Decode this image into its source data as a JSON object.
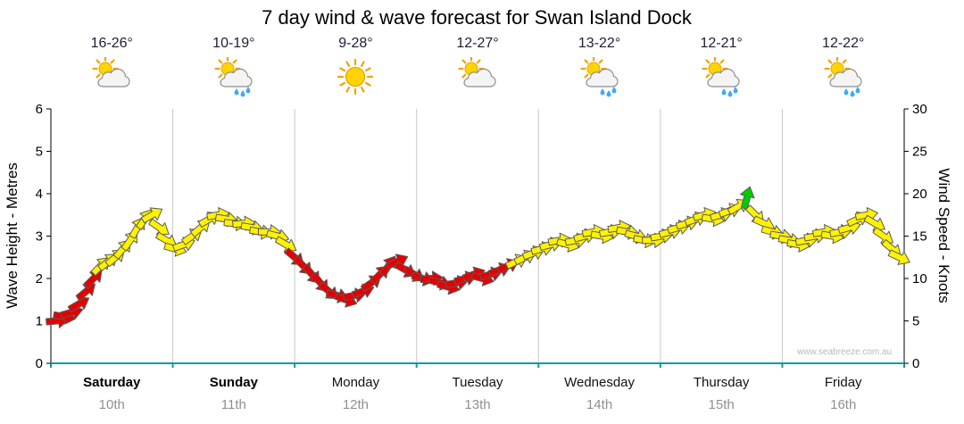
{
  "title": "7 day wind & wave forecast for Swan Island Dock",
  "watermark": "www.seabreeze.com.au",
  "colors": {
    "arrow_red": "#e60000",
    "arrow_yellow": "#fff200",
    "arrow_green": "#00cc00",
    "arrow_outline": "#5a5a5a",
    "axis": "#000000",
    "axis_bottom": "#0f9b9b",
    "grid": "#c8c8c8",
    "date_text": "#909090",
    "temp_text": "#1e1e32",
    "watermark_text": "#b8b8b8"
  },
  "y_axis_left": {
    "label": "Wave Height - Metres",
    "ticks": [
      0,
      1,
      2,
      3,
      4,
      5,
      6
    ],
    "range": [
      0,
      6
    ]
  },
  "y_axis_right": {
    "label": "Wind Speed - Knots",
    "ticks": [
      0,
      5,
      10,
      15,
      20,
      25,
      30
    ],
    "range": [
      0,
      30
    ]
  },
  "days": [
    {
      "name": "Saturday",
      "date": "10th",
      "temp": "16-26°",
      "icon": "sun-cloud",
      "weekend": true
    },
    {
      "name": "Sunday",
      "date": "11th",
      "temp": "10-19°",
      "icon": "sun-cloud-rain",
      "weekend": true
    },
    {
      "name": "Monday",
      "date": "12th",
      "temp": "9-28°",
      "icon": "sun",
      "weekend": false
    },
    {
      "name": "Tuesday",
      "date": "13th",
      "temp": "12-27°",
      "icon": "sun-cloud",
      "weekend": false
    },
    {
      "name": "Wednesday",
      "date": "14th",
      "temp": "13-22°",
      "icon": "sun-cloud-rain",
      "weekend": false
    },
    {
      "name": "Thursday",
      "date": "15th",
      "temp": "12-21°",
      "icon": "sun-cloud-rain",
      "weekend": false
    },
    {
      "name": "Friday",
      "date": "16th",
      "temp": "12-22°",
      "icon": "sun-cloud-rain",
      "weekend": false
    }
  ],
  "chart_data": {
    "type": "wind-arrows",
    "title": "7 day wind & wave forecast for Swan Island Dock",
    "x_axis": {
      "unit": "days",
      "range": [
        0,
        7
      ],
      "categories": [
        "Saturday 10th",
        "Sunday 11th",
        "Monday 12th",
        "Tuesday 13th",
        "Wednesday 14th",
        "Thursday 15th",
        "Friday 16th"
      ]
    },
    "y_axis": {
      "label": "Wind Speed - Knots",
      "range": [
        0,
        30
      ],
      "grid": "vertical-day-lines-only"
    },
    "secondary_y_axis": {
      "label": "Wave Height - Metres",
      "range": [
        0,
        6
      ]
    },
    "point_format": [
      "day_offset",
      "wind_speed_knots",
      "arrow_angle_deg_ccw_from_east",
      "color r|y|g"
    ],
    "points": [
      [
        0.05,
        5,
        5,
        "r"
      ],
      [
        0.11,
        5.5,
        -10,
        "r"
      ],
      [
        0.17,
        6,
        15,
        "r"
      ],
      [
        0.23,
        7,
        30,
        "r"
      ],
      [
        0.29,
        8.5,
        40,
        "r"
      ],
      [
        0.35,
        10,
        45,
        "r"
      ],
      [
        0.41,
        11.5,
        45,
        "y"
      ],
      [
        0.47,
        12,
        40,
        "y"
      ],
      [
        0.53,
        12.5,
        40,
        "y"
      ],
      [
        0.59,
        13.5,
        50,
        "y"
      ],
      [
        0.65,
        14.5,
        55,
        "y"
      ],
      [
        0.71,
        16,
        60,
        "y"
      ],
      [
        0.77,
        17,
        55,
        "y"
      ],
      [
        0.83,
        17.5,
        30,
        "y"
      ],
      [
        0.89,
        16,
        -35,
        "y"
      ],
      [
        0.95,
        14.5,
        -30,
        "y"
      ],
      [
        1.02,
        13.5,
        -15,
        "y"
      ],
      [
        1.09,
        14,
        20,
        "y"
      ],
      [
        1.16,
        15,
        35,
        "y"
      ],
      [
        1.23,
        16,
        40,
        "y"
      ],
      [
        1.3,
        17,
        30,
        "y"
      ],
      [
        1.37,
        17.5,
        10,
        "y"
      ],
      [
        1.44,
        17,
        -10,
        "y"
      ],
      [
        1.51,
        16.5,
        -5,
        "y"
      ],
      [
        1.58,
        16.5,
        5,
        "y"
      ],
      [
        1.65,
        16,
        -10,
        "y"
      ],
      [
        1.72,
        15.5,
        -10,
        "y"
      ],
      [
        1.79,
        15.5,
        0,
        "y"
      ],
      [
        1.86,
        15,
        -15,
        "y"
      ],
      [
        1.93,
        14,
        -30,
        "y"
      ],
      [
        2.0,
        12.5,
        -40,
        "r"
      ],
      [
        2.07,
        11.5,
        -45,
        "r"
      ],
      [
        2.14,
        10.5,
        -50,
        "r"
      ],
      [
        2.21,
        9.5,
        -50,
        "r"
      ],
      [
        2.28,
        8.5,
        -40,
        "r"
      ],
      [
        2.35,
        8,
        -15,
        "r"
      ],
      [
        2.42,
        7.5,
        -20,
        "r"
      ],
      [
        2.49,
        8,
        10,
        "r"
      ],
      [
        2.56,
        8.5,
        20,
        "r"
      ],
      [
        2.63,
        9.5,
        35,
        "r"
      ],
      [
        2.7,
        10.5,
        45,
        "r"
      ],
      [
        2.77,
        11.5,
        55,
        "r"
      ],
      [
        2.84,
        12,
        25,
        "r"
      ],
      [
        2.91,
        11,
        -30,
        "r"
      ],
      [
        2.98,
        10.5,
        -30,
        "r"
      ],
      [
        3.05,
        10,
        -15,
        "r"
      ],
      [
        3.12,
        10,
        5,
        "r"
      ],
      [
        3.19,
        9.5,
        -15,
        "r"
      ],
      [
        3.26,
        9,
        -15,
        "r"
      ],
      [
        3.33,
        9.5,
        10,
        "r"
      ],
      [
        3.4,
        10,
        15,
        "r"
      ],
      [
        3.47,
        10.5,
        20,
        "r"
      ],
      [
        3.54,
        10,
        -15,
        "r"
      ],
      [
        3.61,
        10.5,
        15,
        "r"
      ],
      [
        3.68,
        11,
        20,
        "r"
      ],
      [
        3.75,
        11.5,
        25,
        "r"
      ],
      [
        3.82,
        12,
        25,
        "y"
      ],
      [
        3.89,
        12.5,
        25,
        "y"
      ],
      [
        3.96,
        13,
        20,
        "y"
      ],
      [
        4.03,
        13.5,
        15,
        "y"
      ],
      [
        4.1,
        14,
        15,
        "y"
      ],
      [
        4.17,
        14.5,
        10,
        "y"
      ],
      [
        4.24,
        14,
        -15,
        "y"
      ],
      [
        4.31,
        14.5,
        10,
        "y"
      ],
      [
        4.38,
        15,
        15,
        "y"
      ],
      [
        4.45,
        15.5,
        10,
        "y"
      ],
      [
        4.52,
        15,
        -10,
        "y"
      ],
      [
        4.59,
        15.5,
        10,
        "y"
      ],
      [
        4.66,
        16,
        10,
        "y"
      ],
      [
        4.73,
        15.5,
        -10,
        "y"
      ],
      [
        4.8,
        15,
        -15,
        "y"
      ],
      [
        4.87,
        14.5,
        -10,
        "y"
      ],
      [
        4.94,
        14.5,
        0,
        "y"
      ],
      [
        5.01,
        15,
        10,
        "y"
      ],
      [
        5.08,
        15.5,
        15,
        "y"
      ],
      [
        5.15,
        16,
        15,
        "y"
      ],
      [
        5.22,
        16.5,
        15,
        "y"
      ],
      [
        5.29,
        17,
        20,
        "y"
      ],
      [
        5.36,
        17.5,
        15,
        "y"
      ],
      [
        5.43,
        17,
        -10,
        "y"
      ],
      [
        5.5,
        17.5,
        15,
        "y"
      ],
      [
        5.57,
        18,
        20,
        "y"
      ],
      [
        5.64,
        18.5,
        30,
        "y"
      ],
      [
        5.71,
        19.5,
        75,
        "g"
      ],
      [
        5.78,
        17.5,
        -45,
        "y"
      ],
      [
        5.85,
        16.5,
        -25,
        "y"
      ],
      [
        5.92,
        15.5,
        -15,
        "y"
      ],
      [
        5.99,
        15,
        -10,
        "y"
      ],
      [
        6.06,
        14.5,
        -10,
        "y"
      ],
      [
        6.13,
        14,
        -10,
        "y"
      ],
      [
        6.2,
        14.5,
        10,
        "y"
      ],
      [
        6.27,
        15,
        10,
        "y"
      ],
      [
        6.34,
        15.5,
        10,
        "y"
      ],
      [
        6.41,
        15,
        -10,
        "y"
      ],
      [
        6.48,
        15.5,
        10,
        "y"
      ],
      [
        6.55,
        16,
        15,
        "y"
      ],
      [
        6.62,
        17,
        25,
        "y"
      ],
      [
        6.69,
        17.5,
        10,
        "y"
      ],
      [
        6.76,
        16.5,
        -30,
        "y"
      ],
      [
        6.83,
        15,
        -35,
        "y"
      ],
      [
        6.9,
        13.5,
        -40,
        "y"
      ],
      [
        6.96,
        12.5,
        -25,
        "y"
      ]
    ]
  }
}
